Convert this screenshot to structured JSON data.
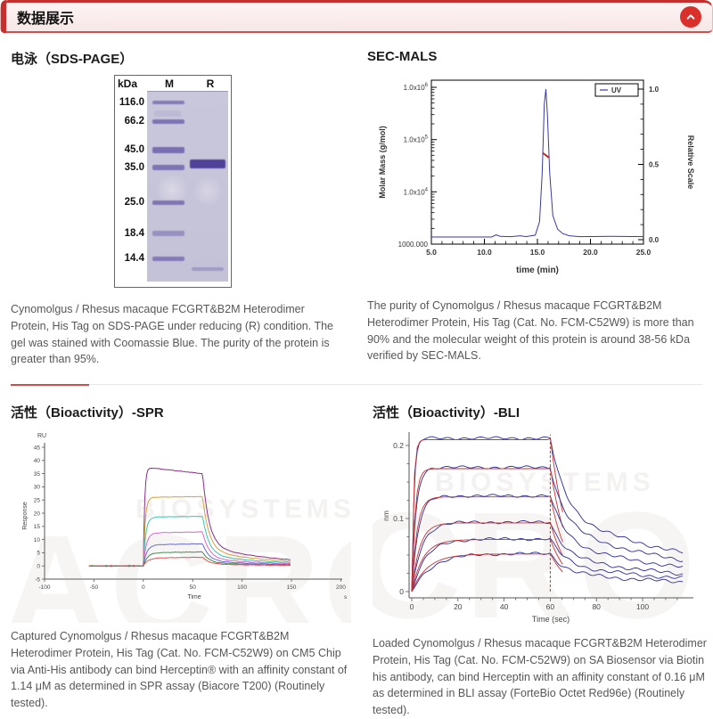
{
  "header": {
    "title": "数据展示"
  },
  "colors": {
    "accent_red": "#c5302f",
    "button_red": "#d9302c",
    "gel_bg": "#c6c4d8",
    "gel_band": "#6c5fab",
    "gel_band_strong": "#4b3c96",
    "sec_curve_blue": "#3a3aa0",
    "sec_mass_red": "#cc1111",
    "bli_data_blue": "#2a2a9c",
    "bli_fit_red": "#c83333"
  },
  "watermark": {
    "logo_text": "ACRO",
    "brand_text": "BIOSYSTEMS",
    "reg_mark": "®"
  },
  "sections": {
    "sds_page": {
      "title": "电泳（SDS-PAGE）",
      "gel": {
        "unit_label": "kDa",
        "lane_labels": [
          "M",
          "R"
        ],
        "markers": [
          "116.0",
          "66.2",
          "45.0",
          "35.0",
          "25.0",
          "18.4",
          "14.4"
        ]
      },
      "caption": "Cynomolgus / Rhesus macaque FCGRT&B2M Heterodimer Protein, His Tag on SDS-PAGE under reducing (R) condition. The gel was stained with Coomassie Blue. The purity of the protein is greater than 95%."
    },
    "sec_mals": {
      "title": "SEC-MALS",
      "caption": "The purity of Cynomolgus / Rhesus macaque FCGRT&B2M Heterodimer Protein, His Tag (Cat. No. FCM-C52W9) is more than 90% and the molecular weight of this protein is around 38-56 kDa verified by SEC-MALS."
    },
    "spr": {
      "title": "活性（Bioactivity）-SPR",
      "caption": "Captured Cynomolgus / Rhesus macaque FCGRT&B2M Heterodimer Protein, His Tag (Cat. No. FCM-C52W9) on CM5 Chip via Anti-His antibody can bind Herceptin® with an affinity constant of 1.14 μM as determined in SPR assay (Biacore T200) (Routinely tested)."
    },
    "bli": {
      "title": "活性（Bioactivity）-BLI",
      "caption": "Loaded Cynomolgus / Rhesus macaque FCGRT&B2M Heterodimer Protein, His Tag (Cat. No. FCM-C52W9) on SA Biosensor via Biotin his antibody, can bind Herceptin with an affinity constant of 0.16 μM as determined in BLI assay (ForteBio Octet Red96e) (Routinely tested)."
    }
  },
  "chart_data": [
    {
      "id": "sec_mals",
      "type": "line",
      "xlabel": "time (min)",
      "ylabel_left": "Molar Mass (g/mol)",
      "ylabel_right": "Relative Scale",
      "xlim": [
        5,
        25
      ],
      "xticks": [
        "5.0",
        "10.0",
        "15.0",
        "20.0",
        "25.0"
      ],
      "yticks_left": [
        "1.0x10^6",
        "1.0x10^5",
        "1.0x10^4",
        "1000.000"
      ],
      "yticks_right": [
        "1.0",
        "0.5",
        "0.0"
      ],
      "legend": [
        "UV"
      ],
      "legend_position": "top-right",
      "grid": false,
      "series": [
        {
          "name": "UV",
          "axis": "right",
          "points": [
            [
              5,
              0.018
            ],
            [
              10.7,
              0.018
            ],
            [
              11.1,
              0.032
            ],
            [
              11.5,
              0.022
            ],
            [
              12.5,
              0.02
            ],
            [
              13.4,
              0.026
            ],
            [
              13.9,
              0.02
            ],
            [
              14.8,
              0.03
            ],
            [
              15.2,
              0.12
            ],
            [
              15.45,
              0.45
            ],
            [
              15.65,
              0.9
            ],
            [
              15.8,
              1.0
            ],
            [
              15.95,
              0.82
            ],
            [
              16.15,
              0.45
            ],
            [
              16.45,
              0.16
            ],
            [
              16.9,
              0.07
            ],
            [
              17.4,
              0.04
            ],
            [
              18.0,
              0.026
            ],
            [
              19,
              0.02
            ],
            [
              22,
              0.022
            ],
            [
              25,
              0.02
            ]
          ]
        },
        {
          "name": "Molar Mass",
          "axis": "right",
          "points": [
            [
              15.52,
              0.575
            ],
            [
              16.08,
              0.545
            ]
          ]
        }
      ]
    },
    {
      "id": "spr",
      "type": "line",
      "xlabel": "Time",
      "x_unit": "s",
      "ylabel": "Response",
      "y_unit": "RU",
      "xlim": [
        -100,
        200
      ],
      "ylim": [
        -5,
        45
      ],
      "xticks": [
        -100,
        -50,
        0,
        50,
        100,
        150,
        200
      ],
      "yticks": [
        -5,
        0,
        5,
        10,
        15,
        20,
        25,
        30,
        35,
        40,
        45
      ],
      "curve_start": -55,
      "association_start": 0,
      "dissociation_start": 60,
      "curve_end": 150,
      "grid": false,
      "series": [
        {
          "plateau": 37.5,
          "drift": -2.5,
          "color": "#8a2e86"
        },
        {
          "plateau": 26,
          "drift": 0.3,
          "color": "#d2a23e"
        },
        {
          "plateau": 18.5,
          "drift": 0.3,
          "color": "#3cc4ae"
        },
        {
          "plateau": 12.5,
          "drift": 0.4,
          "color": "#df62d4"
        },
        {
          "plateau": 8,
          "drift": 0.4,
          "color": "#6567d8"
        },
        {
          "plateau": 5,
          "drift": 0.3,
          "color": "#3f8a4f"
        },
        {
          "plateau": 3,
          "drift": 0.3,
          "color": "#e05353"
        }
      ]
    },
    {
      "id": "bli",
      "type": "line",
      "xlabel": "Time (sec)",
      "ylabel": "nm",
      "xlim": [
        0,
        118
      ],
      "ylim": [
        0,
        0.22
      ],
      "xticks": [
        0,
        20,
        40,
        60,
        80,
        100
      ],
      "yticks": [
        "0",
        "0.1",
        "0.2"
      ],
      "dissociation_start": 60,
      "grid": false,
      "series": [
        {
          "plateau": 0.21,
          "tau": 1.0
        },
        {
          "plateau": 0.17,
          "tau": 1.8
        },
        {
          "plateau": 0.131,
          "tau": 2.8
        },
        {
          "plateau": 0.095,
          "tau": 4.2
        },
        {
          "plateau": 0.072,
          "tau": 6.0
        },
        {
          "plateau": 0.052,
          "tau": 8.5
        }
      ]
    }
  ]
}
